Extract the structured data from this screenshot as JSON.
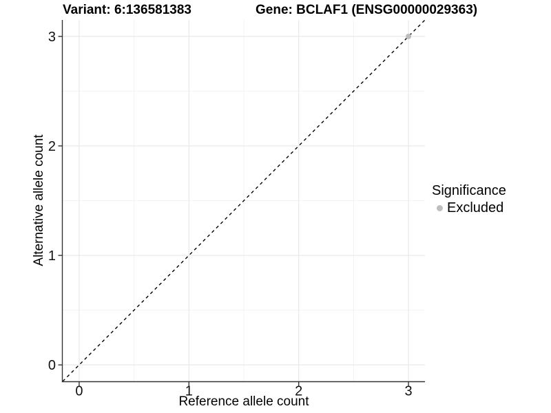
{
  "titles": {
    "variant": "Variant: 6:136581383",
    "gene": "Gene: BCLAF1 (ENSG00000029363)"
  },
  "axes": {
    "x_label": "Reference allele count",
    "y_label": "Alternative allele count"
  },
  "legend": {
    "title": "Significance",
    "items": [
      {
        "label": "Excluded",
        "color": "#bebebe"
      }
    ]
  },
  "chart_data": {
    "type": "scatter",
    "title": "Variant: 6:136581383   Gene: BCLAF1 (ENSG00000029363)",
    "xlabel": "Reference allele count",
    "ylabel": "Alternative allele count",
    "xlim": [
      -0.15,
      3.15
    ],
    "ylim": [
      -0.15,
      3.15
    ],
    "x_ticks": [
      0,
      1,
      2,
      3
    ],
    "y_ticks": [
      0,
      1,
      2,
      3
    ],
    "minor_ticks": [
      0.5,
      1.5,
      2.5
    ],
    "grid": true,
    "legend_position": "right",
    "reference_line": {
      "type": "identity",
      "slope": 1,
      "intercept": 0,
      "style": "dashed",
      "color": "#000000"
    },
    "series": [
      {
        "name": "Excluded",
        "color": "#bebebe",
        "points": [
          {
            "x": 3,
            "y": 3
          }
        ]
      }
    ],
    "colors": {
      "panel_background": "#ffffff",
      "grid_major": "#e8e8e8",
      "grid_minor": "#f3f3f3",
      "axis_line": "#333333",
      "tick_text": "#111111"
    }
  }
}
